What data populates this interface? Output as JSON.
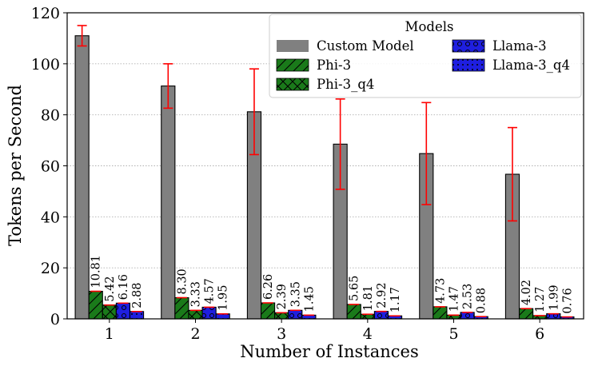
{
  "chart_data": {
    "type": "bar",
    "title": "",
    "xlabel": "Number of Instances",
    "ylabel": "Tokens per Second",
    "ylim": [
      0,
      120
    ],
    "yticks": [
      0,
      20,
      40,
      60,
      80,
      100,
      120
    ],
    "grid": "y-dotted",
    "categories": [
      "1",
      "2",
      "3",
      "4",
      "5",
      "6"
    ],
    "legend": {
      "title": "Models",
      "placement": "upper-right",
      "columns": 2
    },
    "series": [
      {
        "name": "Custom Model",
        "color": "#808080",
        "hatch": "none",
        "values": [
          111.0,
          91.3,
          81.2,
          68.5,
          64.8,
          56.7
        ],
        "errors": [
          4.0,
          8.7,
          16.8,
          17.7,
          20.0,
          18.3
        ],
        "labels": [
          "",
          "",
          "",
          "",
          "",
          ""
        ]
      },
      {
        "name": "Phi-3",
        "color": "#1a7a1a",
        "hatch": "diagonal",
        "values": [
          10.81,
          8.3,
          6.26,
          5.65,
          4.73,
          4.02
        ],
        "labels": [
          "10.81",
          "8.30",
          "6.26",
          "5.65",
          "4.73",
          "4.02"
        ]
      },
      {
        "name": "Phi-3_q4",
        "color": "#1a7a1a",
        "hatch": "cross",
        "values": [
          5.42,
          3.33,
          2.39,
          1.81,
          1.47,
          1.27
        ],
        "labels": [
          "5.42",
          "3.33",
          "2.39",
          "1.81",
          "1.47",
          "1.27"
        ]
      },
      {
        "name": "Llama-3",
        "color": "#1f1fe0",
        "hatch": "circles",
        "values": [
          6.16,
          4.57,
          3.35,
          2.92,
          2.53,
          1.99
        ],
        "labels": [
          "6.16",
          "4.57",
          "3.35",
          "2.92",
          "2.53",
          "1.99"
        ]
      },
      {
        "name": "Llama-3_q4",
        "color": "#1f1fe0",
        "hatch": "dots",
        "values": [
          2.88,
          1.95,
          1.45,
          1.17,
          0.88,
          0.76
        ],
        "labels": [
          "2.88",
          "1.95",
          "1.45",
          "1.17",
          "0.88",
          "0.76"
        ]
      }
    ],
    "error_bar_color": "#ff0000"
  }
}
